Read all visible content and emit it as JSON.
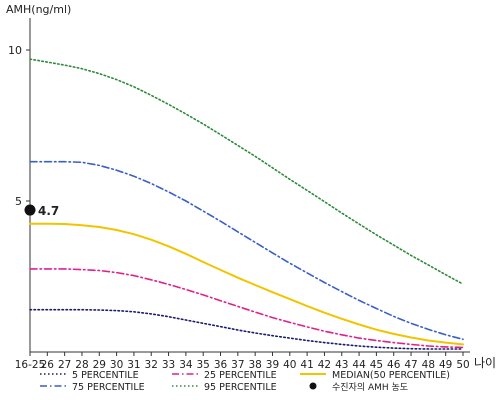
{
  "chart_data": {
    "type": "line",
    "ylabel": "AMH(ng/ml)",
    "xlabel": "나이",
    "ylim": [
      0,
      10
    ],
    "y_ticks": [
      5,
      10
    ],
    "x": [
      "16-25",
      "26",
      "27",
      "28",
      "29",
      "30",
      "31",
      "32",
      "33",
      "34",
      "35",
      "36",
      "37",
      "38",
      "39",
      "40",
      "41",
      "42",
      "43",
      "44",
      "45",
      "46",
      "47",
      "48",
      "49",
      "50"
    ],
    "series": [
      {
        "name": "5 PERCENTILE",
        "color": "#1a1a6e",
        "dash": "dotted",
        "values": [
          1.4,
          1.4,
          1.4,
          1.4,
          1.39,
          1.37,
          1.33,
          1.26,
          1.17,
          1.06,
          0.95,
          0.84,
          0.73,
          0.63,
          0.54,
          0.46,
          0.38,
          0.31,
          0.25,
          0.2,
          0.16,
          0.13,
          0.11,
          0.1,
          0.1,
          0.1
        ]
      },
      {
        "name": "25 PERCENTILE",
        "color": "#e0208a",
        "dash": "dashdot",
        "values": [
          2.75,
          2.75,
          2.75,
          2.73,
          2.7,
          2.63,
          2.53,
          2.39,
          2.24,
          2.07,
          1.89,
          1.7,
          1.51,
          1.32,
          1.14,
          0.98,
          0.83,
          0.69,
          0.57,
          0.46,
          0.38,
          0.31,
          0.25,
          0.2,
          0.17,
          0.15
        ]
      },
      {
        "name": "MEDIAN(50 PERCENTILE)",
        "color": "#f2c400",
        "dash": "solid",
        "values": [
          4.25,
          4.25,
          4.24,
          4.2,
          4.14,
          4.04,
          3.9,
          3.72,
          3.5,
          3.25,
          2.98,
          2.72,
          2.46,
          2.22,
          1.98,
          1.75,
          1.52,
          1.3,
          1.1,
          0.91,
          0.74,
          0.6,
          0.48,
          0.38,
          0.31,
          0.25
        ]
      },
      {
        "name": "75 PERCENTILE",
        "color": "#3a5fc8",
        "dash": "dashdot",
        "values": [
          6.3,
          6.3,
          6.3,
          6.28,
          6.18,
          6.02,
          5.82,
          5.58,
          5.3,
          5.0,
          4.67,
          4.33,
          3.98,
          3.63,
          3.28,
          2.94,
          2.62,
          2.3,
          2.0,
          1.71,
          1.44,
          1.18,
          0.95,
          0.75,
          0.57,
          0.42
        ]
      },
      {
        "name": "95 PERCENTILE",
        "color": "#2e8b3a",
        "dash": "dotted",
        "values": [
          9.7,
          9.6,
          9.5,
          9.38,
          9.22,
          9.02,
          8.78,
          8.5,
          8.2,
          7.88,
          7.55,
          7.2,
          6.84,
          6.48,
          6.1,
          5.72,
          5.35,
          4.98,
          4.6,
          4.24,
          3.88,
          3.54,
          3.2,
          2.88,
          2.56,
          2.25
        ]
      }
    ],
    "marker": {
      "x": "16-25",
      "value": 4.7,
      "label": "4.7",
      "legend": "수진자의 AMH 농도",
      "color": "#111111"
    },
    "legend_order": [
      "5 PERCENTILE",
      "25 PERCENTILE",
      "MEDIAN(50 PERCENTILE)",
      "75 PERCENTILE",
      "95 PERCENTILE"
    ],
    "legend_position": "bottom",
    "grid": false
  }
}
